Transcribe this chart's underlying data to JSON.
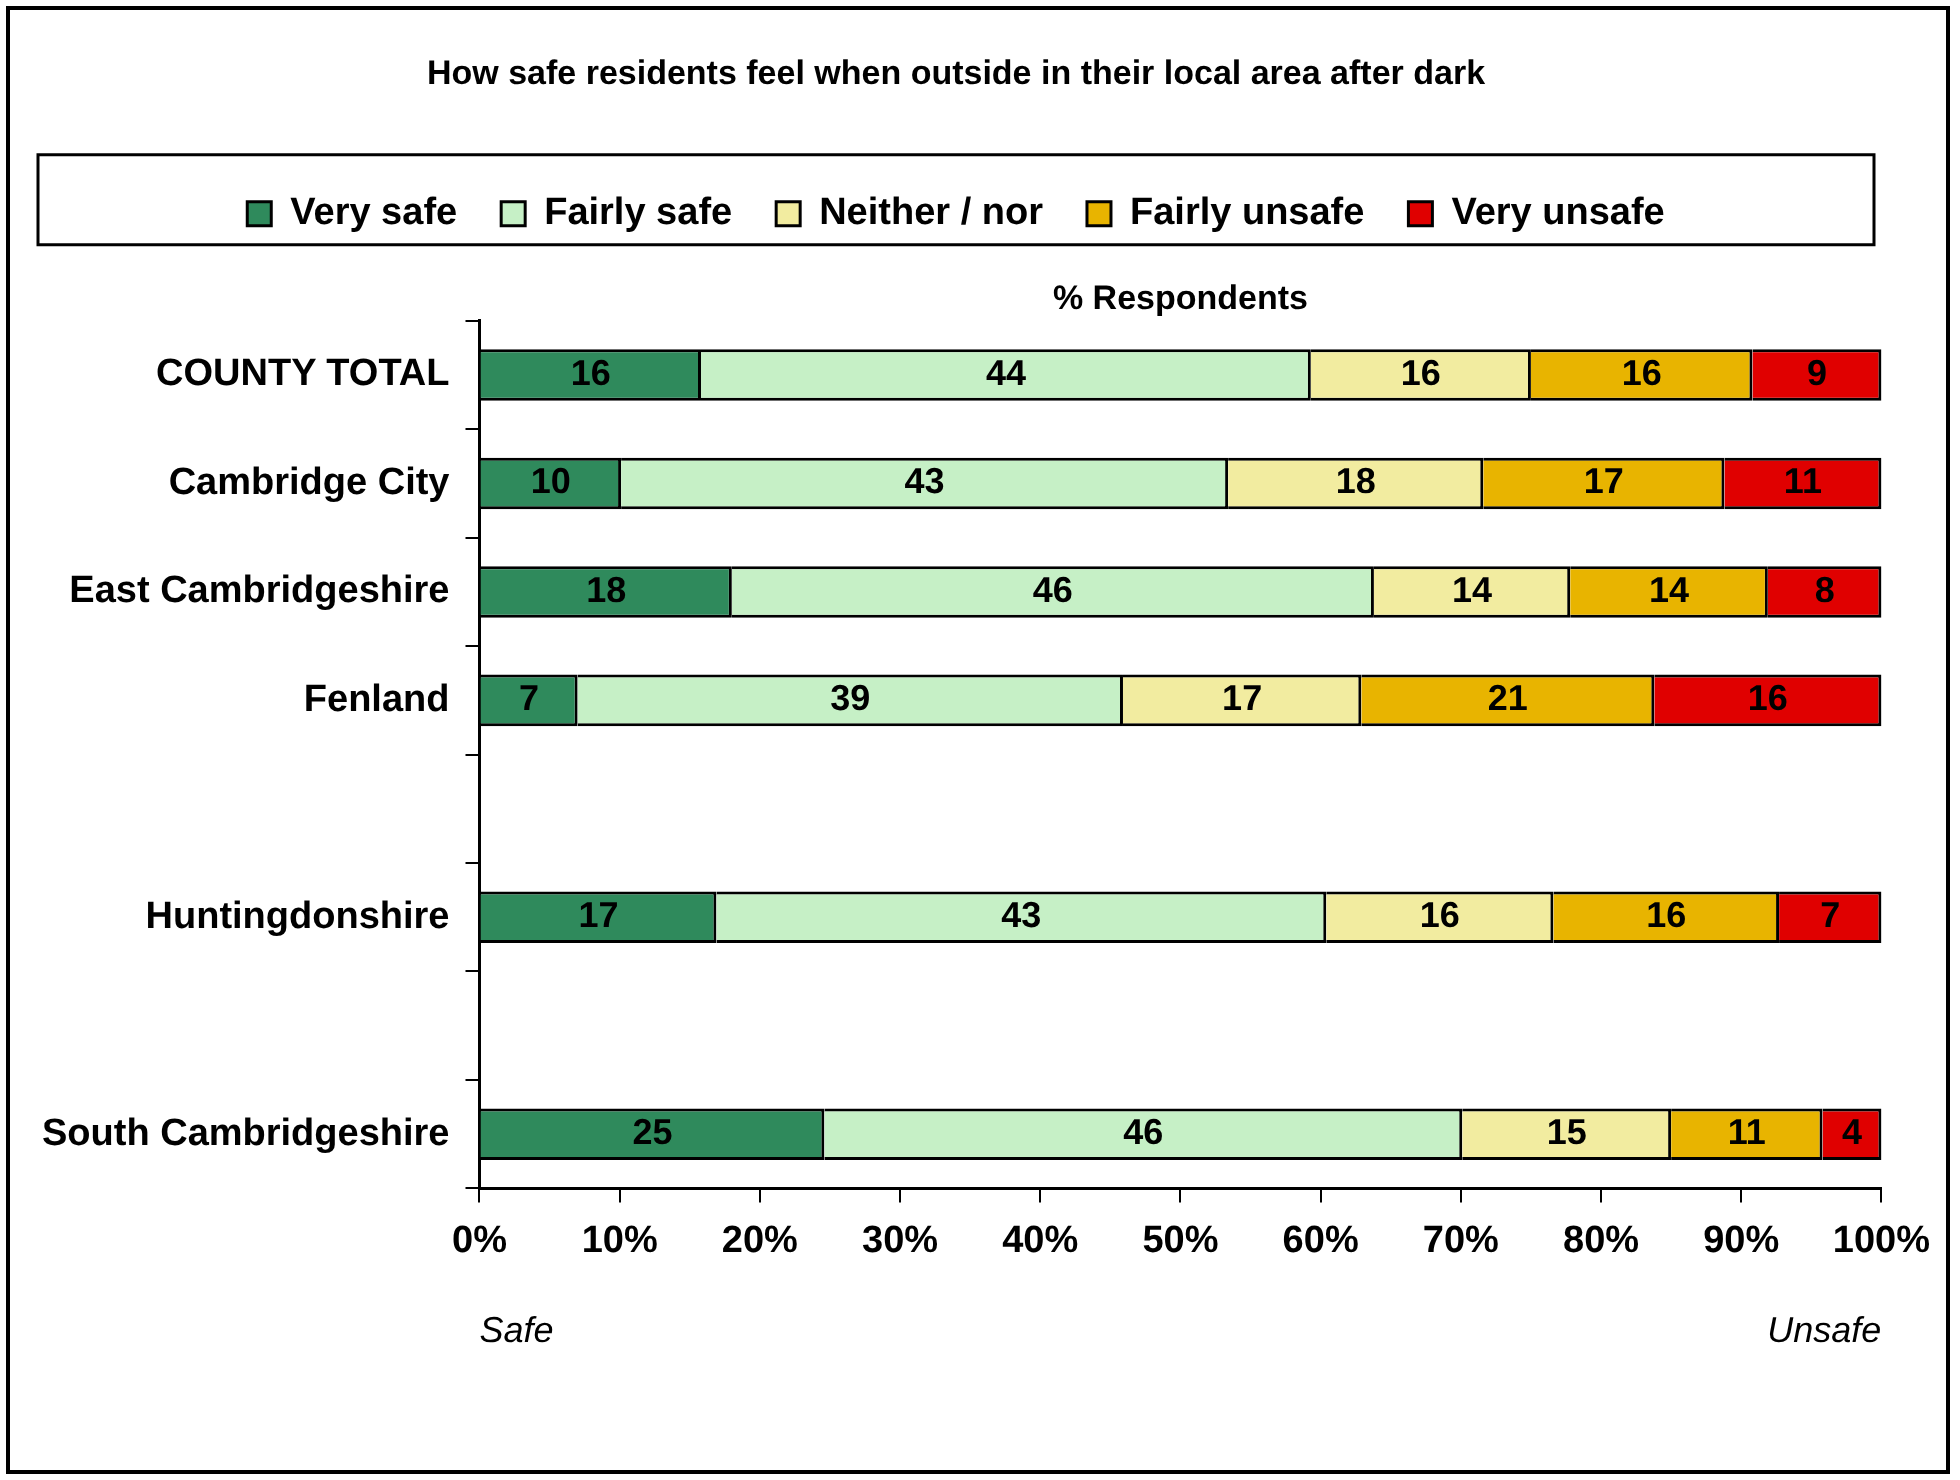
{
  "chart_data": {
    "type": "bar",
    "orientation": "horizontal",
    "stacked": true,
    "title": "How safe residents feel when outside in their local area after dark",
    "xlabel": "% Respondents",
    "categories": [
      "COUNTY TOTAL",
      "Cambridge City",
      "East Cambridgeshire",
      "Fenland",
      null,
      "Huntingdonshire",
      null,
      "South Cambridgeshire"
    ],
    "series": [
      {
        "name": "Very safe",
        "color": "#2f8a5c",
        "values": [
          15.8,
          10.1,
          18.0,
          7.0,
          null,
          16.9,
          null,
          24.6
        ],
        "value_labels": [
          "16",
          "10",
          "18",
          "7",
          null,
          "17",
          null,
          "25"
        ]
      },
      {
        "name": "Fairly safe",
        "color": "#c6f0c6",
        "values": [
          43.5,
          43.3,
          45.8,
          38.9,
          null,
          43.5,
          null,
          45.5
        ],
        "value_labels": [
          "44",
          "43",
          "46",
          "39",
          null,
          "43",
          null,
          "46"
        ]
      },
      {
        "name": "Neither / nor",
        "color": "#f2eca0",
        "values": [
          15.7,
          18.2,
          14.0,
          17.0,
          null,
          16.2,
          null,
          14.9
        ],
        "value_labels": [
          "16",
          "18",
          "14",
          "17",
          null,
          "16",
          null,
          "15"
        ]
      },
      {
        "name": "Fairly unsafe",
        "color": "#e8b400",
        "values": [
          15.8,
          17.2,
          14.1,
          20.9,
          null,
          16.1,
          null,
          10.8
        ],
        "value_labels": [
          "16",
          "17",
          "14",
          "21",
          null,
          "16",
          null,
          "11"
        ]
      },
      {
        "name": "Very unsafe",
        "color": "#e00000",
        "values": [
          9.2,
          11.2,
          8.1,
          16.2,
          null,
          7.3,
          null,
          4.2
        ],
        "value_labels": [
          "9",
          "11",
          "8",
          "16",
          null,
          "7",
          null,
          "4"
        ]
      }
    ],
    "xlim": [
      0,
      100
    ],
    "xticks": [
      {
        "value": 0,
        "label": "0%"
      },
      {
        "value": 10,
        "label": "10%"
      },
      {
        "value": 20,
        "label": "20%"
      },
      {
        "value": 30,
        "label": "30%"
      },
      {
        "value": 40,
        "label": "40%"
      },
      {
        "value": 50,
        "label": "50%"
      },
      {
        "value": 60,
        "label": "60%"
      },
      {
        "value": 70,
        "label": "70%"
      },
      {
        "value": 80,
        "label": "80%"
      },
      {
        "value": 90,
        "label": "90%"
      },
      {
        "value": 100,
        "label": "100%"
      }
    ],
    "annotations": [
      "Safe",
      "Unsafe"
    ],
    "grid": false,
    "legend": "top"
  }
}
